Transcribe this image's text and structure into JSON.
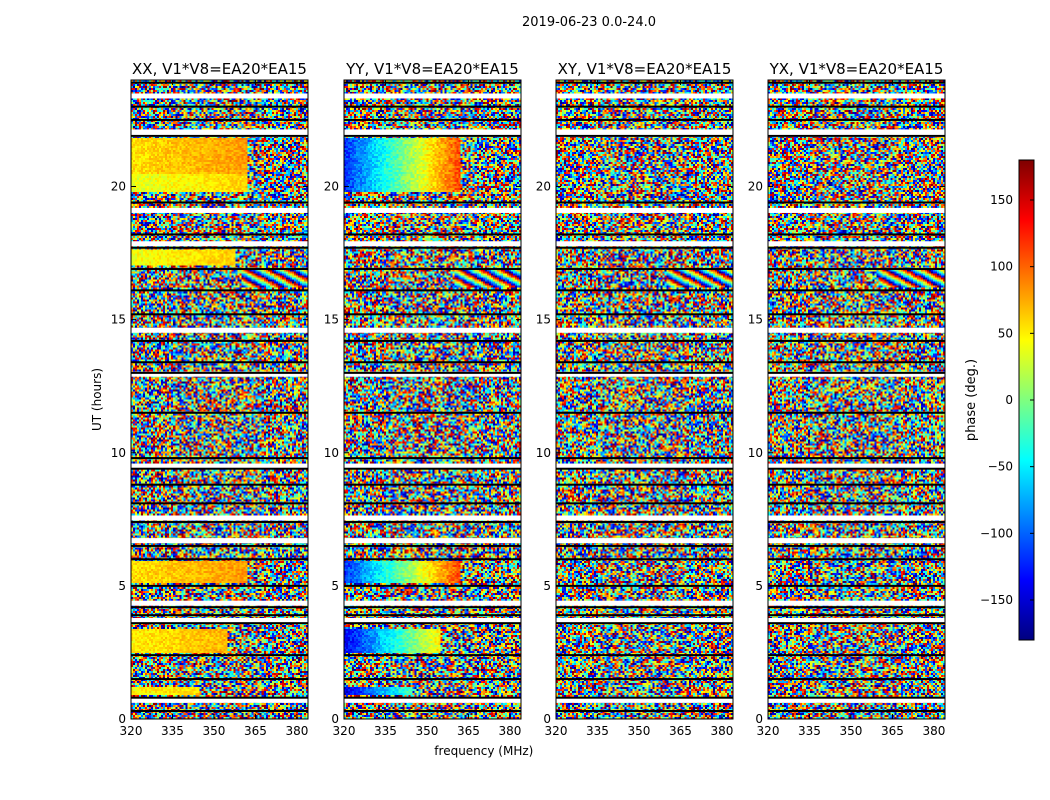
{
  "figure": {
    "suptitle": "2019-06-23 0.0-24.0"
  },
  "chart_data": [
    {
      "type": "heatmap",
      "title": "XX, V1*V8=EA20*EA15",
      "xlabel": "",
      "ylabel": "UT (hours)",
      "xlim": [
        320,
        384
      ],
      "ylim": [
        0,
        24
      ],
      "xticks": [
        320,
        335,
        350,
        365,
        380
      ],
      "yticks": [
        0,
        5,
        10,
        15,
        20
      ],
      "coherent_bands": [
        {
          "t0": 20.5,
          "t1": 21.8,
          "f_end": 362,
          "phase": 55
        },
        {
          "t0": 19.8,
          "t1": 20.5,
          "f_end": 362,
          "phase": 35
        },
        {
          "t0": 17.0,
          "t1": 17.6,
          "f_end": 358,
          "phase": 40
        },
        {
          "t0": 5.1,
          "t1": 5.9,
          "f_end": 362,
          "phase": 55
        },
        {
          "t0": 2.5,
          "t1": 3.4,
          "f_end": 355,
          "phase": 50
        },
        {
          "t0": 0.9,
          "t1": 1.2,
          "f_end": 345,
          "phase": 45
        }
      ],
      "fringe_band": {
        "t0": 16.2,
        "t1": 16.9,
        "f_start": 360,
        "f_end": 384
      }
    },
    {
      "type": "heatmap",
      "title": "YY, V1*V8=EA20*EA15",
      "xlabel": "frequency (MHz)",
      "ylabel": "",
      "xlim": [
        320,
        384
      ],
      "ylim": [
        0,
        24
      ],
      "xticks": [
        320,
        335,
        350,
        365,
        380
      ],
      "yticks": [
        0,
        5,
        10,
        15,
        20
      ],
      "coherent_bands": [
        {
          "t0": 19.8,
          "t1": 21.8,
          "f_end": 362,
          "phase": -120
        },
        {
          "t0": 5.1,
          "t1": 5.9,
          "f_end": 362,
          "phase": -120
        },
        {
          "t0": 2.5,
          "t1": 3.4,
          "f_end": 355,
          "phase": -140
        },
        {
          "t0": 0.9,
          "t1": 1.2,
          "f_end": 345,
          "phase": -150
        }
      ],
      "fringe_band": {
        "t0": 16.2,
        "t1": 16.9,
        "f_start": 360,
        "f_end": 384
      }
    },
    {
      "type": "heatmap",
      "title": "XY, V1*V8=EA20*EA15",
      "xlabel": "",
      "ylabel": "",
      "xlim": [
        320,
        384
      ],
      "ylim": [
        0,
        24
      ],
      "xticks": [
        320,
        335,
        350,
        365,
        380
      ],
      "yticks": [
        0,
        5,
        10,
        15,
        20
      ],
      "coherent_bands": [],
      "fringe_band": {
        "t0": 16.2,
        "t1": 16.9,
        "f_start": 360,
        "f_end": 384
      }
    },
    {
      "type": "heatmap",
      "title": "YX, V1*V8=EA20*EA15",
      "xlabel": "",
      "ylabel": "",
      "xlim": [
        320,
        384
      ],
      "ylim": [
        0,
        24
      ],
      "xticks": [
        320,
        335,
        350,
        365,
        380
      ],
      "yticks": [
        0,
        5,
        10,
        15,
        20
      ],
      "coherent_bands": [],
      "fringe_band": {
        "t0": 16.2,
        "t1": 16.9,
        "f_start": 360,
        "f_end": 384
      }
    }
  ],
  "time_structure": {
    "flagged_gaps_hours": [
      23.4,
      22.05,
      21.95,
      19.1,
      17.85,
      14.6,
      12.95,
      9.5,
      7.55,
      6.7,
      4.35,
      3.7,
      0.7
    ],
    "scan_breaks_hours": [
      23.9,
      23.0,
      22.5,
      21.9,
      19.4,
      18.2,
      17.7,
      16.9,
      16.1,
      15.2,
      14.2,
      13.4,
      13.0,
      11.5,
      9.8,
      9.4,
      8.8,
      8.1,
      7.4,
      6.5,
      6.0,
      5.0,
      4.2,
      3.9,
      3.6,
      2.4,
      1.5,
      0.8,
      0.3
    ]
  },
  "colorbar": {
    "label": "phase (deg.)",
    "vmin": -180,
    "vmax": 180,
    "ticks": [
      150,
      100,
      50,
      0,
      -50,
      -100,
      -150
    ],
    "tick_labels": [
      "150",
      "100",
      "50",
      "0",
      "−50",
      "−100",
      "−150"
    ],
    "colormap": [
      "#00007f",
      "#0000ff",
      "#007fff",
      "#00ffff",
      "#7fff7f",
      "#ffff00",
      "#ff7f00",
      "#ff0000",
      "#7f0000"
    ]
  }
}
